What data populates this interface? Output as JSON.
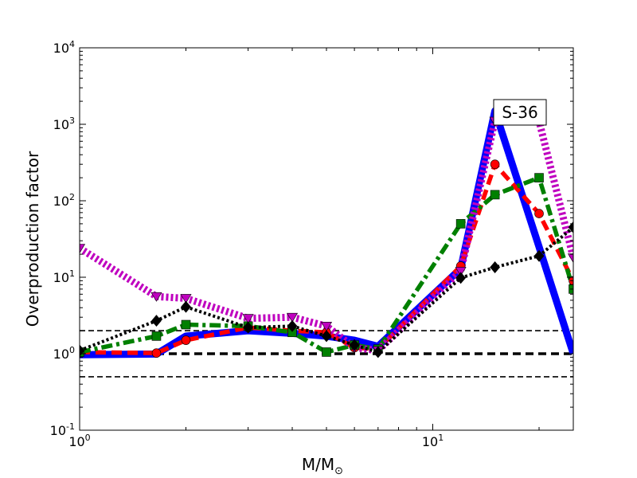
{
  "chart_data": {
    "type": "line",
    "xscale": "log",
    "yscale": "log",
    "xlim": [
      1,
      25
    ],
    "ylim": [
      0.1,
      10000
    ],
    "xlabel": "M/M",
    "xlabel_sub": "⊙",
    "ylabel": "Overproduction factor",
    "annotation": "S-36",
    "x_ticks": [
      {
        "value": 1,
        "base": "10",
        "exp": "0"
      },
      {
        "value": 10,
        "base": "10",
        "exp": "1"
      }
    ],
    "y_ticks": [
      {
        "value": 0.1,
        "base": "10",
        "exp": "-1"
      },
      {
        "value": 1,
        "base": "10",
        "exp": "0"
      },
      {
        "value": 10,
        "base": "10",
        "exp": "1"
      },
      {
        "value": 100,
        "base": "10",
        "exp": "2"
      },
      {
        "value": 1000,
        "base": "10",
        "exp": "3"
      },
      {
        "value": 10000,
        "base": "10",
        "exp": "4"
      }
    ],
    "reference_lines": [
      {
        "y": 2,
        "style": "dashed",
        "color": "#000000",
        "weight": "thin"
      },
      {
        "y": 1,
        "style": "dashed",
        "color": "#000000",
        "weight": "thick"
      },
      {
        "y": 0.5,
        "style": "dashed",
        "color": "#000000",
        "weight": "thin"
      }
    ],
    "grid": false,
    "series": [
      {
        "color": "#0000ff",
        "style": "solid",
        "weight": "very-thick",
        "marker": "none",
        "x": [
          1,
          1.65,
          2,
          3,
          4,
          5,
          6,
          7,
          12,
          15,
          20,
          25
        ],
        "y": [
          0.97,
          0.99,
          1.7,
          2.0,
          1.85,
          1.7,
          1.5,
          1.25,
          13,
          1500,
          25,
          1.0
        ]
      },
      {
        "color": "#ff0000",
        "style": "dashed",
        "weight": "thick",
        "marker": "circle",
        "x": [
          1,
          1.65,
          2,
          3,
          4,
          5,
          6,
          7,
          12,
          15,
          20,
          25
        ],
        "y": [
          1.05,
          1.02,
          1.5,
          2.2,
          2.0,
          1.9,
          1.2,
          1.15,
          14,
          300,
          68,
          9
        ]
      },
      {
        "color": "#008000",
        "style": "dash-dot",
        "weight": "thick",
        "marker": "square",
        "x": [
          1,
          1.65,
          2,
          3,
          4,
          5,
          6,
          7,
          12,
          15,
          20,
          25
        ],
        "y": [
          1.05,
          1.7,
          2.4,
          2.3,
          1.9,
          1.05,
          1.3,
          1.15,
          50,
          120,
          200,
          7
        ]
      },
      {
        "color": "#bf00bf",
        "style": "dotted",
        "weight": "very-thick",
        "marker": "triangle-down",
        "x": [
          1,
          1.65,
          2,
          3,
          4,
          5,
          6,
          7,
          12,
          15,
          20,
          25
        ],
        "y": [
          24,
          5.6,
          5.3,
          2.9,
          3.0,
          2.3,
          1.2,
          1.1,
          12,
          1100,
          1100,
          18
        ]
      },
      {
        "color": "#000000",
        "style": "dotted",
        "weight": "medium",
        "marker": "diamond",
        "x": [
          1,
          1.65,
          2,
          3,
          4,
          5,
          6,
          7,
          12,
          15,
          20,
          25
        ],
        "y": [
          1.1,
          2.7,
          4.1,
          2.2,
          2.3,
          1.7,
          1.3,
          1.05,
          9.8,
          13.5,
          19,
          45
        ]
      }
    ]
  }
}
